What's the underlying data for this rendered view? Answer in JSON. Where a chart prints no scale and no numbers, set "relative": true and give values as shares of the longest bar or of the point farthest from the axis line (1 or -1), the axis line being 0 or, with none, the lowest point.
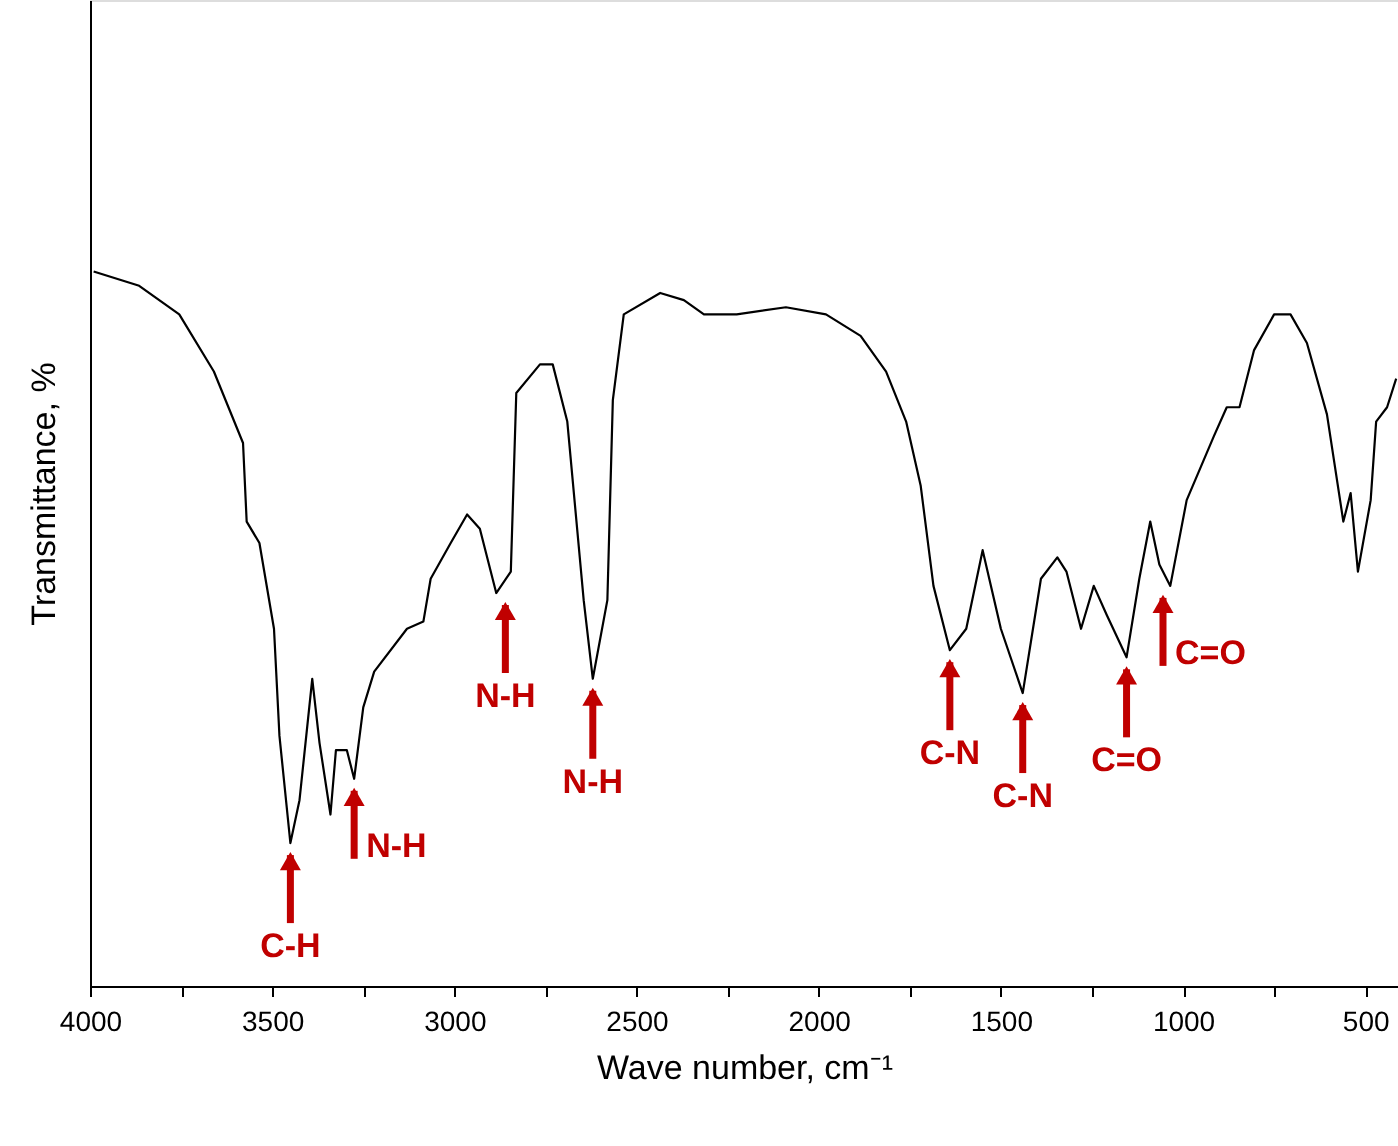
{
  "chart_data": {
    "type": "line",
    "relative": true,
    "xlabel": "Wave number, cm⁻¹",
    "ylabel": "Transmittance, %",
    "xlim": [
      4000,
      410
    ],
    "xticks": [
      4000,
      {
        "value": 3750,
        "label": null
      },
      3500,
      {
        "value": 3250,
        "label": null
      },
      3000,
      {
        "value": 2750,
        "label": null
      },
      2500,
      {
        "value": 2250,
        "label": null
      },
      2000,
      {
        "value": 1750,
        "label": null
      },
      1500,
      {
        "value": 1250,
        "label": null
      },
      1000,
      {
        "value": 750,
        "label": null
      },
      500
    ],
    "grid": false,
    "marker": "none",
    "line_style": "solid",
    "series": [
      {
        "color": "#000000",
        "x": [
          3990,
          3865,
          3755,
          3660,
          3580,
          3570,
          3535,
          3495,
          3480,
          3450,
          3425,
          3390,
          3370,
          3340,
          3325,
          3295,
          3275,
          3250,
          3220,
          3130,
          3085,
          3065,
          3010,
          2965,
          2930,
          2885,
          2845,
          2830,
          2765,
          2730,
          2690,
          2645,
          2620,
          2580,
          2565,
          2535,
          2435,
          2370,
          2315,
          2225,
          2090,
          1980,
          1885,
          1815,
          1760,
          1720,
          1685,
          1640,
          1595,
          1550,
          1500,
          1440,
          1390,
          1345,
          1320,
          1280,
          1245,
          1210,
          1155,
          1120,
          1090,
          1065,
          1035,
          990,
          915,
          880,
          845,
          805,
          750,
          705,
          660,
          605,
          560,
          540,
          520,
          485,
          470,
          440,
          415
        ],
        "values": [
          1.0,
          0.98,
          0.94,
          0.86,
          0.76,
          0.65,
          0.62,
          0.5,
          0.35,
          0.2,
          0.26,
          0.43,
          0.34,
          0.24,
          0.33,
          0.33,
          0.29,
          0.39,
          0.44,
          0.5,
          0.51,
          0.57,
          0.62,
          0.66,
          0.64,
          0.55,
          0.58,
          0.83,
          0.87,
          0.87,
          0.79,
          0.54,
          0.43,
          0.54,
          0.82,
          0.94,
          0.97,
          0.96,
          0.94,
          0.94,
          0.95,
          0.94,
          0.91,
          0.86,
          0.79,
          0.7,
          0.56,
          0.47,
          0.5,
          0.61,
          0.5,
          0.41,
          0.57,
          0.6,
          0.58,
          0.5,
          0.56,
          0.52,
          0.46,
          0.57,
          0.65,
          0.59,
          0.56,
          0.68,
          0.77,
          0.81,
          0.81,
          0.89,
          0.94,
          0.94,
          0.9,
          0.8,
          0.65,
          0.69,
          0.58,
          0.68,
          0.79,
          0.81,
          0.85
        ]
      }
    ],
    "annotations": [
      {
        "text": "C-H",
        "x": 3450,
        "y": 0.2
      },
      {
        "text": "N-H",
        "x": 3275,
        "y": 0.29
      },
      {
        "text": "N-H",
        "x": 2860,
        "y": 0.55
      },
      {
        "text": "N-H",
        "x": 2620,
        "y": 0.43
      },
      {
        "text": "C-N",
        "x": 1640,
        "y": 0.47
      },
      {
        "text": "C-N",
        "x": 1440,
        "y": 0.41
      },
      {
        "text": "C=O",
        "x": 1155,
        "y": 0.46
      },
      {
        "text": "C=O",
        "x": 1055,
        "y": 0.56
      }
    ]
  }
}
